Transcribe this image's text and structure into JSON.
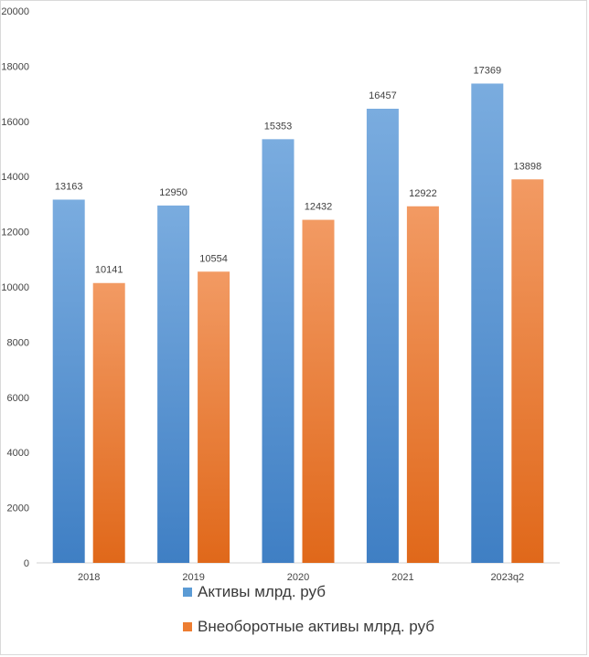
{
  "chart_data": {
    "type": "bar",
    "title": "",
    "xlabel": "",
    "ylabel": "",
    "categories": [
      "2018",
      "2019",
      "2020",
      "2021",
      "2023q2"
    ],
    "series": [
      {
        "name": "Активы млрд. руб",
        "values": [
          13163,
          12950,
          15353,
          16457,
          17369
        ],
        "color": "#5b9bd5"
      },
      {
        "name": "Внеоборотные активы млрд. руб",
        "values": [
          10141,
          10554,
          12432,
          12922,
          13898
        ],
        "color": "#ed7d31"
      }
    ],
    "y_ticks": [
      "0",
      "2000",
      "4000",
      "6000",
      "8000",
      "10000",
      "12000",
      "14000",
      "16000",
      "18000",
      "20000"
    ],
    "ylim": [
      0,
      20000
    ],
    "grid": false,
    "data_labels": true,
    "legend": "bottom"
  }
}
